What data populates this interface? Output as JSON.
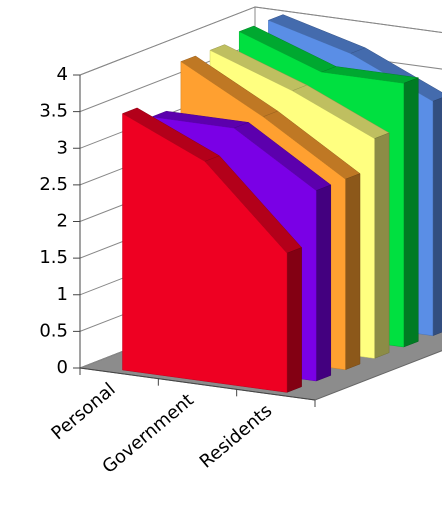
{
  "chart_data": {
    "type": "area3d",
    "categories": [
      "Personal",
      "Government",
      "Residents"
    ],
    "series": [
      {
        "color": "#ee0022",
        "values": [
          3.5,
          3.0,
          1.9
        ]
      },
      {
        "color": "#7a00e6",
        "values": [
          3.3,
          3.3,
          2.6
        ]
      },
      {
        "color": "#ffa030",
        "values": [
          3.9,
          3.3,
          2.6
        ]
      },
      {
        "color": "#ffff80",
        "values": [
          3.9,
          3.5,
          3.0
        ]
      },
      {
        "color": "#00e040",
        "values": [
          4.0,
          3.6,
          3.6
        ]
      },
      {
        "color": "#5a8ee6",
        "values": [
          4.0,
          3.7,
          3.2
        ]
      }
    ],
    "ylim": [
      0,
      4
    ],
    "yticks": [
      0,
      0.5,
      1,
      1.5,
      2,
      2.5,
      3,
      3.5,
      4
    ],
    "grid": true
  }
}
